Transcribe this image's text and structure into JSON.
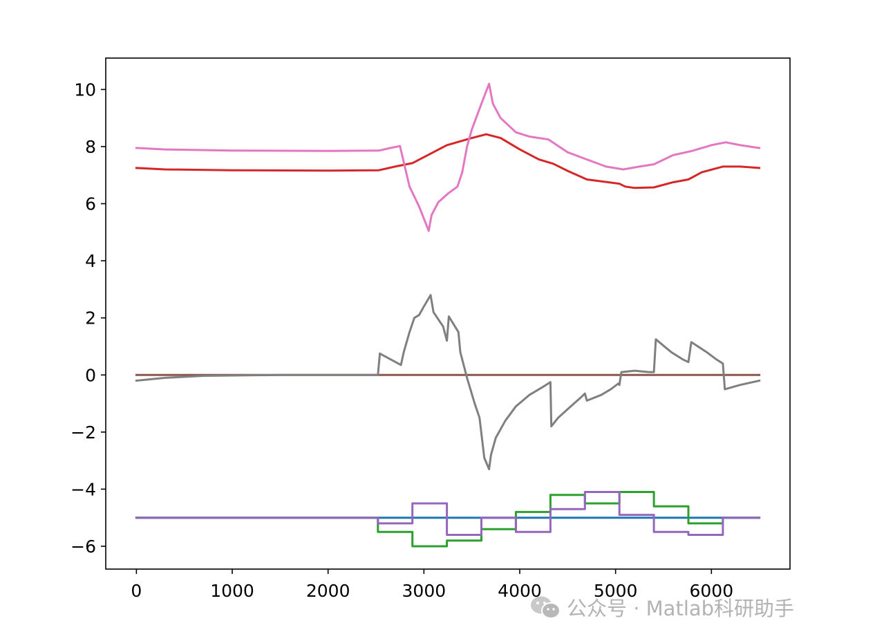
{
  "chart_data": {
    "type": "line",
    "title": "",
    "xlabel": "",
    "ylabel": "",
    "xlim": [
      -320,
      6820
    ],
    "ylim": [
      -6.8,
      11.1
    ],
    "xticks": [
      0,
      1000,
      2000,
      3000,
      4000,
      5000,
      6000
    ],
    "yticks": [
      -6,
      -4,
      -2,
      0,
      2,
      4,
      6,
      8,
      10
    ],
    "grid": false,
    "legend": "none",
    "series": [
      {
        "color": "#1f77b4",
        "points": [
          [
            0,
            -5
          ],
          [
            6500,
            -5
          ]
        ]
      },
      {
        "color": "#8c564b",
        "points": [
          [
            0,
            0
          ],
          [
            6500,
            0
          ]
        ]
      },
      {
        "color": "#2ca02c",
        "step": true,
        "points": [
          [
            0,
            -5
          ],
          [
            2520,
            -5
          ],
          [
            2520,
            -5.5
          ],
          [
            2880,
            -5.5
          ],
          [
            2880,
            -6
          ],
          [
            3240,
            -6
          ],
          [
            3240,
            -5.8
          ],
          [
            3600,
            -5.8
          ],
          [
            3600,
            -5.4
          ],
          [
            3960,
            -5.4
          ],
          [
            3960,
            -4.8
          ],
          [
            4320,
            -4.8
          ],
          [
            4320,
            -4.2
          ],
          [
            4680,
            -4.2
          ],
          [
            4680,
            -4.5
          ],
          [
            5040,
            -4.5
          ],
          [
            5040,
            -4.1
          ],
          [
            5400,
            -4.1
          ],
          [
            5400,
            -4.6
          ],
          [
            5760,
            -4.6
          ],
          [
            5760,
            -5.2
          ],
          [
            6120,
            -5.2
          ],
          [
            6120,
            -5
          ],
          [
            6500,
            -5
          ]
        ]
      },
      {
        "color": "#9467bd",
        "step": true,
        "points": [
          [
            0,
            -5
          ],
          [
            2520,
            -5
          ],
          [
            2520,
            -5.2
          ],
          [
            2880,
            -5.2
          ],
          [
            2880,
            -4.5
          ],
          [
            3240,
            -4.5
          ],
          [
            3240,
            -5.6
          ],
          [
            3600,
            -5.6
          ],
          [
            3600,
            -5
          ],
          [
            3960,
            -5
          ],
          [
            3960,
            -5.5
          ],
          [
            4320,
            -5.5
          ],
          [
            4320,
            -4.7
          ],
          [
            4680,
            -4.7
          ],
          [
            4680,
            -4.1
          ],
          [
            5040,
            -4.1
          ],
          [
            5040,
            -4.9
          ],
          [
            5400,
            -4.9
          ],
          [
            5400,
            -5.5
          ],
          [
            5760,
            -5.5
          ],
          [
            5760,
            -5.6
          ],
          [
            6120,
            -5.6
          ],
          [
            6120,
            -5
          ],
          [
            6500,
            -5
          ]
        ]
      },
      {
        "color": "#d62728",
        "points": [
          [
            0,
            7.25
          ],
          [
            300,
            7.2
          ],
          [
            1000,
            7.17
          ],
          [
            2000,
            7.16
          ],
          [
            2530,
            7.17
          ],
          [
            2700,
            7.3
          ],
          [
            2880,
            7.42
          ],
          [
            3240,
            8.05
          ],
          [
            3500,
            8.3
          ],
          [
            3650,
            8.43
          ],
          [
            3800,
            8.3
          ],
          [
            4000,
            7.9
          ],
          [
            4200,
            7.55
          ],
          [
            4350,
            7.4
          ],
          [
            4500,
            7.15
          ],
          [
            4700,
            6.85
          ],
          [
            5040,
            6.7
          ],
          [
            5100,
            6.6
          ],
          [
            5200,
            6.55
          ],
          [
            5400,
            6.57
          ],
          [
            5600,
            6.75
          ],
          [
            5760,
            6.85
          ],
          [
            5900,
            7.1
          ],
          [
            6120,
            7.3
          ],
          [
            6300,
            7.3
          ],
          [
            6500,
            7.25
          ]
        ]
      },
      {
        "color": "#e377c2",
        "points": [
          [
            0,
            7.95
          ],
          [
            300,
            7.9
          ],
          [
            1000,
            7.86
          ],
          [
            2000,
            7.85
          ],
          [
            2530,
            7.86
          ],
          [
            2650,
            7.95
          ],
          [
            2750,
            8.02
          ],
          [
            2780,
            7.6
          ],
          [
            2850,
            6.6
          ],
          [
            2950,
            5.9
          ],
          [
            3050,
            5.05
          ],
          [
            3080,
            5.6
          ],
          [
            3150,
            6.05
          ],
          [
            3250,
            6.35
          ],
          [
            3350,
            6.6
          ],
          [
            3400,
            7.1
          ],
          [
            3450,
            8.0
          ],
          [
            3500,
            8.6
          ],
          [
            3600,
            9.5
          ],
          [
            3680,
            10.2
          ],
          [
            3720,
            9.5
          ],
          [
            3800,
            9.0
          ],
          [
            3960,
            8.5
          ],
          [
            4100,
            8.35
          ],
          [
            4300,
            8.25
          ],
          [
            4500,
            7.8
          ],
          [
            4700,
            7.55
          ],
          [
            4900,
            7.3
          ],
          [
            5080,
            7.2
          ],
          [
            5250,
            7.3
          ],
          [
            5400,
            7.38
          ],
          [
            5600,
            7.7
          ],
          [
            5800,
            7.85
          ],
          [
            6000,
            8.05
          ],
          [
            6150,
            8.15
          ],
          [
            6300,
            8.05
          ],
          [
            6500,
            7.95
          ]
        ]
      },
      {
        "color": "#7f7f7f",
        "points": [
          [
            0,
            -0.2
          ],
          [
            300,
            -0.1
          ],
          [
            700,
            -0.03
          ],
          [
            1500,
            0
          ],
          [
            2500,
            0
          ],
          [
            2520,
            0
          ],
          [
            2540,
            0.75
          ],
          [
            2760,
            0.35
          ],
          [
            2790,
            0.8
          ],
          [
            2850,
            1.5
          ],
          [
            2900,
            2.0
          ],
          [
            2950,
            2.1
          ],
          [
            3000,
            2.4
          ],
          [
            3070,
            2.8
          ],
          [
            3100,
            2.2
          ],
          [
            3200,
            1.7
          ],
          [
            3240,
            1.2
          ],
          [
            3260,
            2.05
          ],
          [
            3360,
            1.5
          ],
          [
            3380,
            0.8
          ],
          [
            3450,
            -0.1
          ],
          [
            3530,
            -1.0
          ],
          [
            3580,
            -1.5
          ],
          [
            3630,
            -2.9
          ],
          [
            3680,
            -3.3
          ],
          [
            3700,
            -2.8
          ],
          [
            3750,
            -2.2
          ],
          [
            3850,
            -1.6
          ],
          [
            3960,
            -1.1
          ],
          [
            4100,
            -0.7
          ],
          [
            4250,
            -0.4
          ],
          [
            4320,
            -0.25
          ],
          [
            4330,
            -1.8
          ],
          [
            4400,
            -1.5
          ],
          [
            4500,
            -1.2
          ],
          [
            4650,
            -0.75
          ],
          [
            4680,
            -0.65
          ],
          [
            4700,
            -0.9
          ],
          [
            4850,
            -0.7
          ],
          [
            4950,
            -0.5
          ],
          [
            5030,
            -0.3
          ],
          [
            5040,
            -0.35
          ],
          [
            5060,
            0.1
          ],
          [
            5200,
            0.15
          ],
          [
            5350,
            0.1
          ],
          [
            5400,
            0.1
          ],
          [
            5420,
            1.25
          ],
          [
            5580,
            0.8
          ],
          [
            5700,
            0.55
          ],
          [
            5760,
            0.45
          ],
          [
            5790,
            1.15
          ],
          [
            5950,
            0.8
          ],
          [
            6050,
            0.55
          ],
          [
            6120,
            0.4
          ],
          [
            6140,
            -0.5
          ],
          [
            6300,
            -0.35
          ],
          [
            6500,
            -0.2
          ]
        ]
      }
    ]
  },
  "watermark": {
    "icon": "wechat-icon",
    "text": "公众号 · Matlab科研助手"
  }
}
